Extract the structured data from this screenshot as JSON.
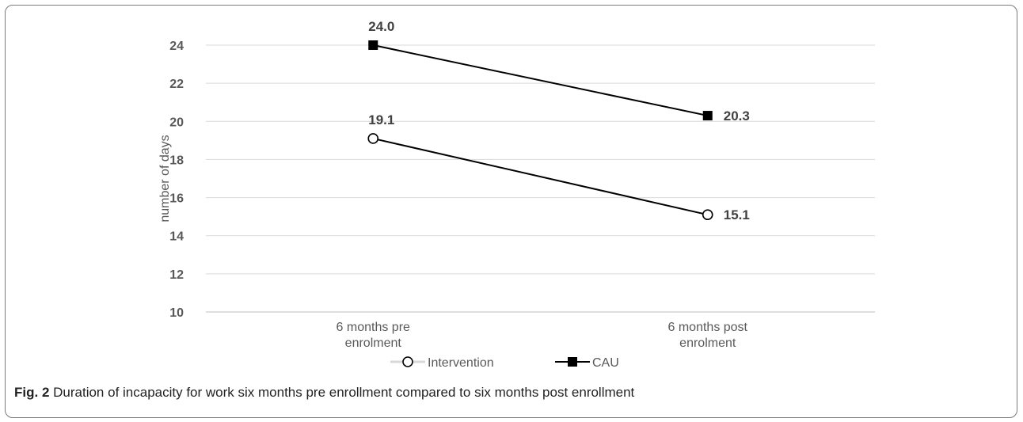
{
  "caption": {
    "label": "Fig. 2",
    "text": " Duration of incapacity for work six months pre enrollment compared to six months post enrollment"
  },
  "chart_data": {
    "type": "line",
    "title": "",
    "xlabel": "",
    "ylabel": "number of days",
    "ylim": [
      10,
      24
    ],
    "yticks": [
      10,
      12,
      14,
      16,
      18,
      20,
      22,
      24
    ],
    "grid": true,
    "legend_position": "bottom",
    "categories": [
      [
        "6 months pre",
        "enrolment"
      ],
      [
        "6 months post",
        "enrolment"
      ]
    ],
    "series": [
      {
        "name": "Intervention",
        "values": [
          19.1,
          15.1
        ],
        "labels": [
          "19.1",
          "15.1"
        ],
        "marker": "open-circle",
        "color": "#000000"
      },
      {
        "name": "CAU",
        "values": [
          24.0,
          20.3
        ],
        "labels": [
          "24.0",
          "20.3"
        ],
        "marker": "filled-square",
        "color": "#000000"
      }
    ],
    "gridline_color": "#d9d9d9"
  }
}
